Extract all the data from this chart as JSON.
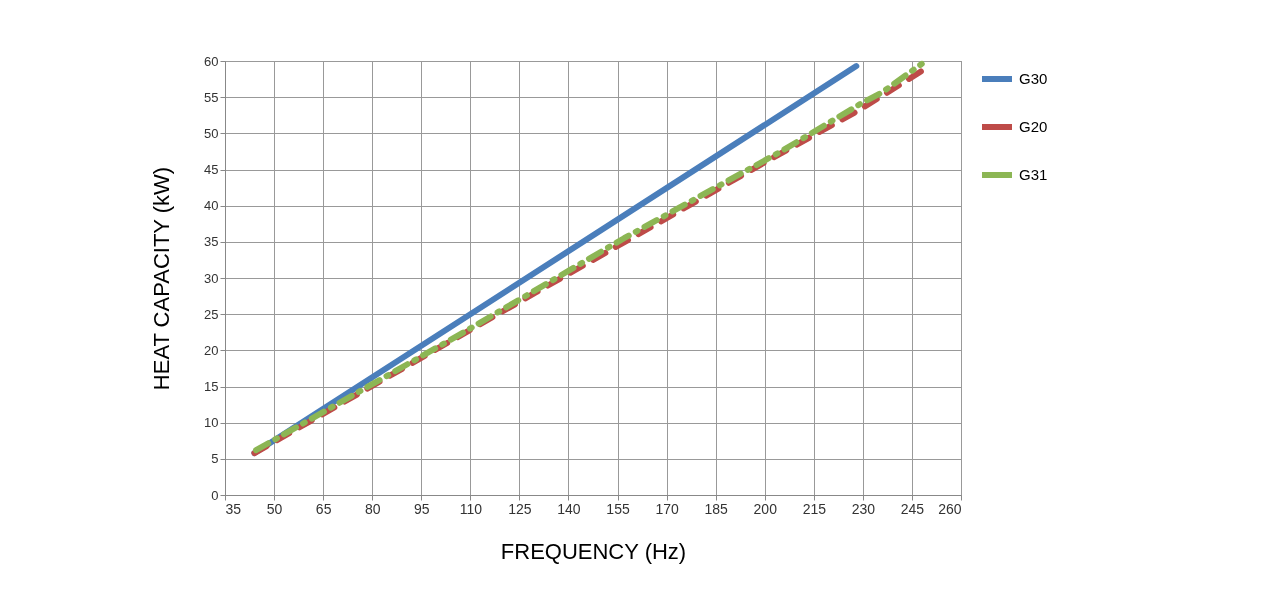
{
  "chart_data": {
    "type": "line",
    "xlabel": "FREQUENCY (Hz)",
    "ylabel": "HEAT CAPACITY (kW)",
    "xlim": [
      35,
      260
    ],
    "xticks": [
      35,
      50,
      65,
      80,
      95,
      110,
      125,
      140,
      155,
      170,
      185,
      200,
      215,
      230,
      245,
      260
    ],
    "ylim": [
      0,
      60
    ],
    "yticks": [
      0,
      5,
      10,
      15,
      20,
      25,
      30,
      35,
      40,
      45,
      50,
      55,
      60
    ],
    "grid": true,
    "legend": "right",
    "marker": "none",
    "series": [
      {
        "name": "G30",
        "color": "#4a7ebb",
        "line_style": "solid",
        "x": [
          44,
          228
        ],
        "values": [
          5.8,
          59.3
        ]
      },
      {
        "name": "G20",
        "color": "#be4b48",
        "line_style": "dashed",
        "x": [
          44,
          130,
          202,
          228,
          237,
          250
        ],
        "values": [
          5.8,
          28,
          46.5,
          53,
          55.5,
          59.2
        ]
      },
      {
        "name": "G31",
        "color": "#8cb654",
        "line_style": "dashdot",
        "x": [
          44.5,
          108,
          157,
          205,
          229,
          236,
          248
        ],
        "values": [
          6.2,
          22.5,
          35.5,
          47.5,
          54,
          55.7,
          59.6
        ]
      }
    ]
  }
}
